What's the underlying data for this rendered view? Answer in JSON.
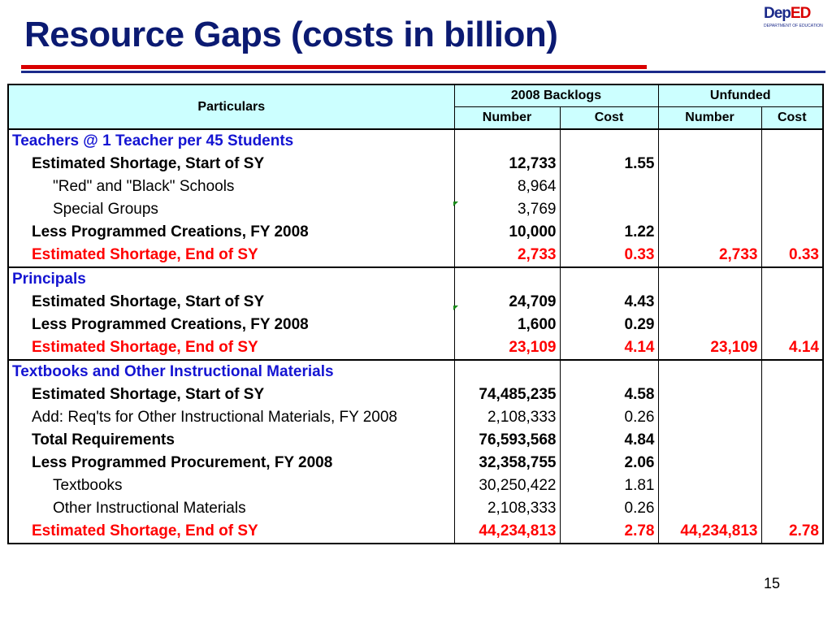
{
  "slide": {
    "title": "Resource Gaps (costs in billion)",
    "page_number": "15",
    "logo": {
      "dep": "Dep",
      "ed": "ED",
      "tagline": "DEPARTMENT OF EDUCATION"
    }
  },
  "table": {
    "headers": {
      "particulars": "Particulars",
      "group1": "2008 Backlogs",
      "group2": "Unfunded",
      "number": "Number",
      "cost": "Cost"
    },
    "sections": [
      {
        "title": "Teachers @ 1 Teacher per 45 Students",
        "rows": [
          {
            "label": "Estimated Shortage, Start of SY",
            "style": "bold",
            "indent": 1,
            "bn": "12,733",
            "bc": "1.55",
            "un": "",
            "uc": ""
          },
          {
            "label": "\"Red\" and \"Black\" Schools",
            "style": "norm",
            "indent": 2,
            "bn": "8,964",
            "bc": "",
            "un": "",
            "uc": ""
          },
          {
            "label": "Special Groups",
            "style": "norm",
            "indent": 2,
            "bn": "3,769",
            "bc": "",
            "un": "",
            "uc": ""
          },
          {
            "label": "Less Programmed Creations, FY 2008",
            "style": "bold",
            "indent": 1,
            "bn": "10,000",
            "bc": "1.22",
            "un": "",
            "uc": ""
          },
          {
            "label": "Estimated Shortage, End of SY",
            "style": "red",
            "indent": 1,
            "bn": "2,733",
            "bc": "0.33",
            "un": "2,733",
            "uc": "0.33"
          }
        ]
      },
      {
        "title": "Principals",
        "rows": [
          {
            "label": "Estimated Shortage, Start of SY",
            "style": "bold",
            "indent": 1,
            "bn": "24,709",
            "bc": "4.43",
            "un": "",
            "uc": ""
          },
          {
            "label": "Less Programmed Creations, FY 2008",
            "style": "bold",
            "indent": 1,
            "bn": "1,600",
            "bc": "0.29",
            "un": "",
            "uc": ""
          },
          {
            "label": "Estimated Shortage, End of SY",
            "style": "red",
            "indent": 1,
            "bn": "23,109",
            "bc": "4.14",
            "un": "23,109",
            "uc": "4.14"
          }
        ]
      },
      {
        "title": "Textbooks and Other Instructional Materials",
        "rows": [
          {
            "label": "Estimated Shortage, Start of SY",
            "style": "bold",
            "indent": 1,
            "bn": "74,485,235",
            "bc": "4.58",
            "un": "",
            "uc": ""
          },
          {
            "label": "Add: Req'ts for Other Instructional Materials, FY 2008",
            "style": "norm",
            "indent": 1,
            "bn": "2,108,333",
            "bc": "0.26",
            "un": "",
            "uc": ""
          },
          {
            "label": "Total Requirements",
            "style": "bold",
            "indent": 1,
            "bn": "76,593,568",
            "bc": "4.84",
            "un": "",
            "uc": ""
          },
          {
            "label": "Less Programmed Procurement, FY 2008",
            "style": "bold",
            "indent": 1,
            "bn": "32,358,755",
            "bc": "2.06",
            "un": "",
            "uc": ""
          },
          {
            "label": "Textbooks",
            "style": "norm",
            "indent": 2,
            "bn": "30,250,422",
            "bc": "1.81",
            "un": "",
            "uc": ""
          },
          {
            "label": "Other Instructional Materials",
            "style": "norm",
            "indent": 2,
            "bn": "2,108,333",
            "bc": "0.26",
            "un": "",
            "uc": ""
          },
          {
            "label": "Estimated Shortage, End of SY",
            "style": "red",
            "indent": 1,
            "bn": "44,234,813",
            "bc": "2.78",
            "un": "44,234,813",
            "uc": "2.78"
          }
        ]
      }
    ]
  }
}
